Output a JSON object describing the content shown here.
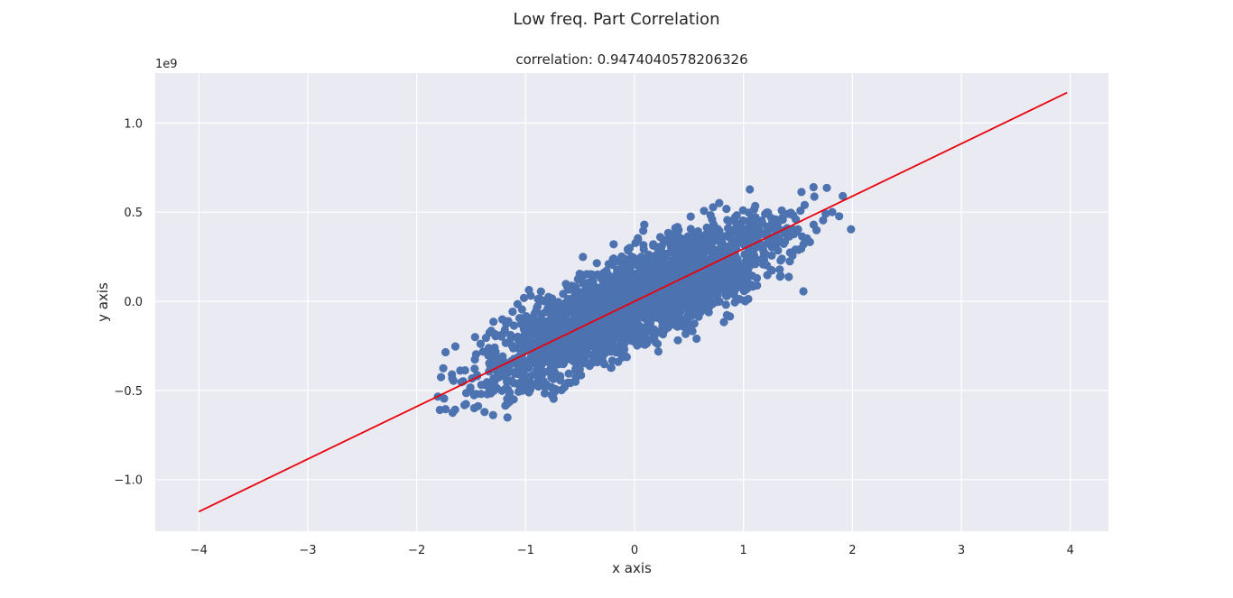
{
  "chart_data": {
    "type": "scatter",
    "suptitle": "Low freq. Part Correlation",
    "title": "correlation: 0.9474040578206326",
    "xlabel": "x axis",
    "ylabel": "y axis",
    "y_offset_label": "1e9",
    "xlim": [
      -4.4,
      4.35
    ],
    "ylim": [
      -1.29,
      1.28
    ],
    "xticks": [
      -4,
      -3,
      -2,
      -1,
      0,
      1,
      2,
      3,
      4
    ],
    "xtick_labels": [
      "−4",
      "−3",
      "−2",
      "−1",
      "0",
      "1",
      "2",
      "3",
      "4"
    ],
    "yticks": [
      -1.0,
      -0.5,
      0.0,
      0.5,
      1.0
    ],
    "ytick_labels": [
      "−1.0",
      "−0.5",
      "0.0",
      "0.5",
      "1.0"
    ],
    "grid": true,
    "background": "#eaeaf2",
    "scatter_color": "#4c72b0",
    "fit_line_color": "#e8000b",
    "fit_line": {
      "x": [
        -4.0,
        3.97
      ],
      "y": [
        -1.18,
        1.17
      ]
    },
    "scatter_cloud": {
      "trend_points": [
        [
          -4.0,
          -1.12
        ],
        [
          -3.5,
          -0.97
        ],
        [
          -3.0,
          -0.83
        ],
        [
          -2.5,
          -0.68
        ],
        [
          -2.0,
          -0.55
        ],
        [
          -1.5,
          -0.42
        ],
        [
          -1.0,
          -0.28
        ],
        [
          -0.5,
          -0.14
        ],
        [
          0.0,
          0.0
        ],
        [
          0.5,
          0.14
        ],
        [
          1.0,
          0.28
        ],
        [
          1.5,
          0.41
        ],
        [
          2.0,
          0.55
        ],
        [
          2.5,
          0.68
        ],
        [
          3.0,
          0.82
        ],
        [
          3.5,
          0.95
        ],
        [
          3.95,
          1.05
        ]
      ],
      "half_width": [
        [
          -4.0,
          0.03
        ],
        [
          -3.5,
          0.06
        ],
        [
          -3.0,
          0.12
        ],
        [
          -2.5,
          0.2
        ],
        [
          -2.0,
          0.25
        ],
        [
          -1.0,
          0.28
        ],
        [
          0.0,
          0.3
        ],
        [
          1.0,
          0.28
        ],
        [
          2.0,
          0.25
        ],
        [
          2.5,
          0.2
        ],
        [
          3.0,
          0.14
        ],
        [
          3.5,
          0.08
        ],
        [
          3.95,
          0.04
        ]
      ]
    }
  }
}
